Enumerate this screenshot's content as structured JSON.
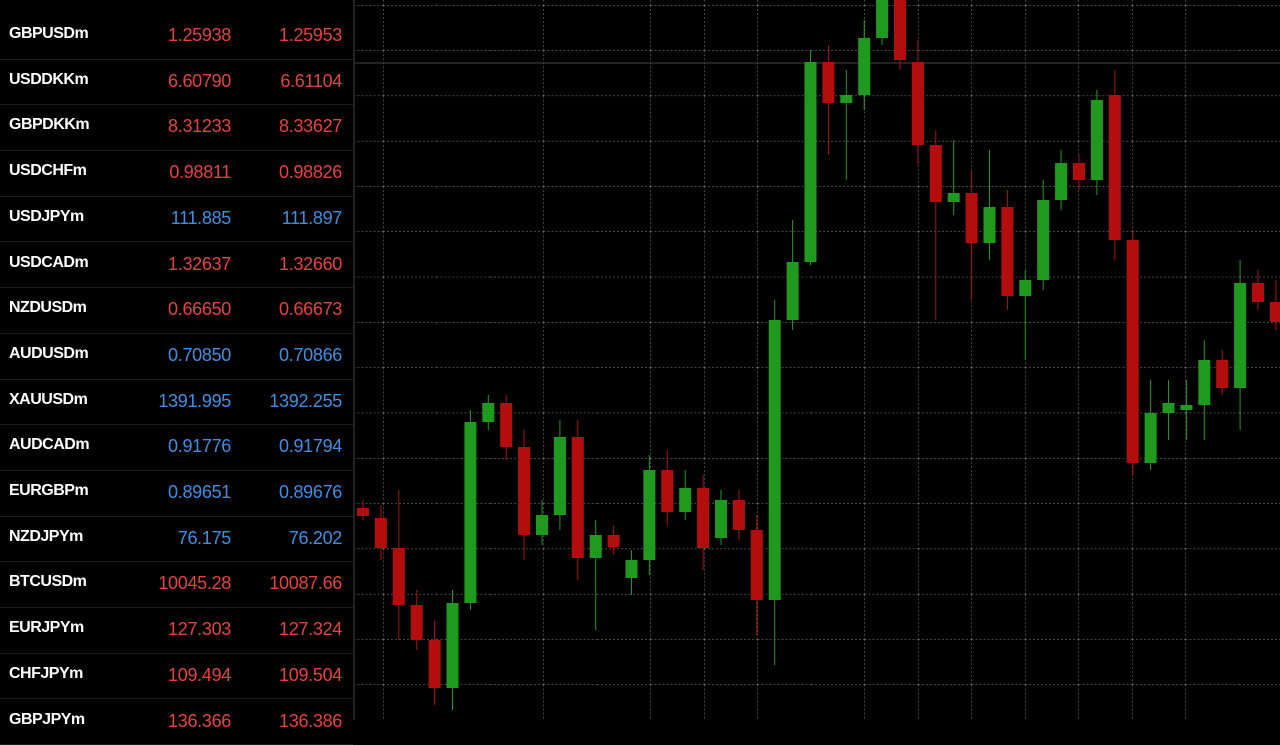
{
  "quotes": [
    {
      "symbol": "GBPUSDm",
      "bid": "1.25938",
      "ask": "1.25953",
      "color": "#e8413f"
    },
    {
      "symbol": "USDDKKm",
      "bid": "6.60790",
      "ask": "6.61104",
      "color": "#e8413f"
    },
    {
      "symbol": "GBPDKKm",
      "bid": "8.31233",
      "ask": "8.33627",
      "color": "#e8413f"
    },
    {
      "symbol": "USDCHFm",
      "bid": "0.98811",
      "ask": "0.98826",
      "color": "#e8413f"
    },
    {
      "symbol": "USDJPYm",
      "bid": "111.885",
      "ask": "111.897",
      "color": "#3d8fe6"
    },
    {
      "symbol": "USDCADm",
      "bid": "1.32637",
      "ask": "1.32660",
      "color": "#e8413f"
    },
    {
      "symbol": "NZDUSDm",
      "bid": "0.66650",
      "ask": "0.66673",
      "color": "#e8413f"
    },
    {
      "symbol": "AUDUSDm",
      "bid": "0.70850",
      "ask": "0.70866",
      "color": "#3d8fe6"
    },
    {
      "symbol": "XAUUSDm",
      "bid": "1391.995",
      "ask": "1392.255",
      "color": "#3d8fe6"
    },
    {
      "symbol": "AUDCADm",
      "bid": "0.91776",
      "ask": "0.91794",
      "color": "#3d8fe6"
    },
    {
      "symbol": "EURGBPm",
      "bid": "0.89651",
      "ask": "0.89676",
      "color": "#3d8fe6"
    },
    {
      "symbol": "NZDJPYm",
      "bid": "76.175",
      "ask": "76.202",
      "color": "#3d8fe6"
    },
    {
      "symbol": "BTCUSDm",
      "bid": "10045.28",
      "ask": "10087.66",
      "color": "#e8413f"
    },
    {
      "symbol": "EURJPYm",
      "bid": "127.303",
      "ask": "127.324",
      "color": "#e8413f"
    },
    {
      "symbol": "CHFJPYm",
      "bid": "109.494",
      "ask": "109.504",
      "color": "#e8413f"
    },
    {
      "symbol": "GBPJPYm",
      "bid": "136.366",
      "ask": "136.386",
      "color": "#e8413f"
    }
  ],
  "chart_data": {
    "type": "candlestick",
    "ylim": [
      0,
      720
    ],
    "up_color": "#1f9a1f",
    "down_color": "#b30d0d",
    "open": [
      212,
      202,
      172,
      115,
      80,
      32,
      117,
      298,
      317,
      273,
      185,
      205,
      283,
      162,
      185,
      142,
      160,
      250,
      208,
      232,
      182,
      220,
      190,
      120,
      400,
      458,
      658,
      617,
      625,
      682,
      730,
      658,
      575,
      518,
      527,
      477,
      513,
      424,
      440,
      520,
      557,
      540,
      625,
      480,
      257,
      307,
      310,
      315,
      360,
      332,
      437,
      418
    ],
    "high": [
      220,
      215,
      230,
      130,
      100,
      130,
      310,
      325,
      325,
      290,
      220,
      300,
      300,
      200,
      195,
      170,
      265,
      270,
      250,
      245,
      230,
      230,
      205,
      420,
      500,
      670,
      675,
      650,
      700,
      740,
      740,
      680,
      590,
      580,
      550,
      570,
      530,
      450,
      540,
      570,
      565,
      630,
      650,
      490,
      340,
      340,
      340,
      380,
      370,
      460,
      450,
      440
    ],
    "low": [
      200,
      160,
      80,
      70,
      15,
      10,
      110,
      290,
      260,
      160,
      175,
      190,
      140,
      90,
      165,
      125,
      145,
      195,
      200,
      150,
      175,
      180,
      85,
      55,
      390,
      455,
      565,
      540,
      610,
      675,
      650,
      555,
      400,
      505,
      420,
      460,
      410,
      360,
      430,
      510,
      530,
      525,
      460,
      245,
      250,
      280,
      280,
      280,
      325,
      290,
      410,
      390
    ],
    "close": [
      204,
      172,
      115,
      80,
      32,
      117,
      298,
      317,
      273,
      185,
      205,
      283,
      162,
      185,
      173,
      160,
      250,
      208,
      232,
      172,
      220,
      190,
      120,
      400,
      458,
      658,
      617,
      625,
      682,
      730,
      660,
      575,
      518,
      527,
      477,
      513,
      424,
      440,
      520,
      557,
      540,
      620,
      480,
      257,
      307,
      317,
      315,
      360,
      332,
      437,
      418,
      398
    ]
  }
}
